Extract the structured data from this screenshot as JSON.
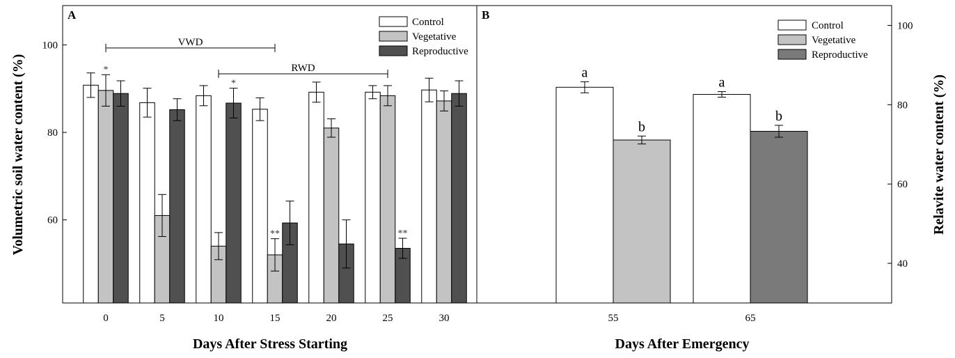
{
  "chart_data": [
    {
      "type": "bar",
      "panel": "A",
      "xlabel": "Days After Stress Starting",
      "ylabel": "Volumetric soil water content (%)",
      "ylim": [
        41,
        109
      ],
      "yticks": [
        60,
        80,
        100
      ],
      "categories": [
        "0",
        "5",
        "10",
        "15",
        "20",
        "25",
        "30"
      ],
      "series": [
        {
          "name": "Control",
          "color": "#ffffff",
          "values": [
            90.8,
            86.8,
            88.4,
            85.3,
            89.2,
            89.2,
            89.7
          ],
          "errors": [
            2.8,
            3.3,
            2.3,
            2.6,
            2.3,
            1.5,
            2.7
          ],
          "stars": [
            "",
            "",
            "",
            "",
            "",
            "",
            ""
          ]
        },
        {
          "name": "Vegetative",
          "color": "#c3c3c3",
          "values": [
            89.6,
            61.0,
            54.0,
            52.0,
            81.0,
            88.4,
            87.2
          ],
          "errors": [
            3.6,
            4.8,
            3.1,
            3.7,
            2.1,
            2.3,
            2.3
          ],
          "stars": [
            "*",
            "",
            "",
            "**",
            "",
            "",
            ""
          ]
        },
        {
          "name": "Reproductive",
          "color": "#505050",
          "values": [
            88.9,
            85.2,
            86.7,
            59.3,
            54.5,
            53.5,
            88.9
          ],
          "errors": [
            2.9,
            2.5,
            3.4,
            5.0,
            5.5,
            2.3,
            2.9
          ],
          "stars": [
            "",
            "",
            "*",
            "",
            "",
            "**",
            ""
          ]
        }
      ],
      "brackets": [
        {
          "label": "VWD",
          "from": "0",
          "to": "15"
        },
        {
          "label": "RWD",
          "from": "10",
          "to": "25"
        }
      ],
      "legend_position": "top-right"
    },
    {
      "type": "bar",
      "panel": "B",
      "xlabel": "Days After Emergency",
      "ylabel": "Relavite water content (%)",
      "ylim": [
        30,
        105
      ],
      "yticks": [
        40,
        60,
        80,
        100
      ],
      "categories": [
        "55",
        "65"
      ],
      "bars": [
        {
          "category": "55",
          "series": "Control",
          "value": 84.4,
          "error": 1.4,
          "letter": "a",
          "color": "#ffffff"
        },
        {
          "category": "55",
          "series": "Vegetative",
          "value": 71.1,
          "error": 1.0,
          "letter": "b",
          "color": "#c3c3c3"
        },
        {
          "category": "65",
          "series": "Control",
          "value": 82.6,
          "error": 0.7,
          "letter": "a",
          "color": "#ffffff"
        },
        {
          "category": "65",
          "series": "Reproductive",
          "value": 73.3,
          "error": 1.5,
          "letter": "b",
          "color": "#7a7a7a"
        }
      ],
      "legend": [
        {
          "name": "Control",
          "color": "#ffffff"
        },
        {
          "name": "Vegetative",
          "color": "#c3c3c3"
        },
        {
          "name": "Reproductive",
          "color": "#7a7a7a"
        }
      ],
      "legend_position": "top-right"
    }
  ]
}
